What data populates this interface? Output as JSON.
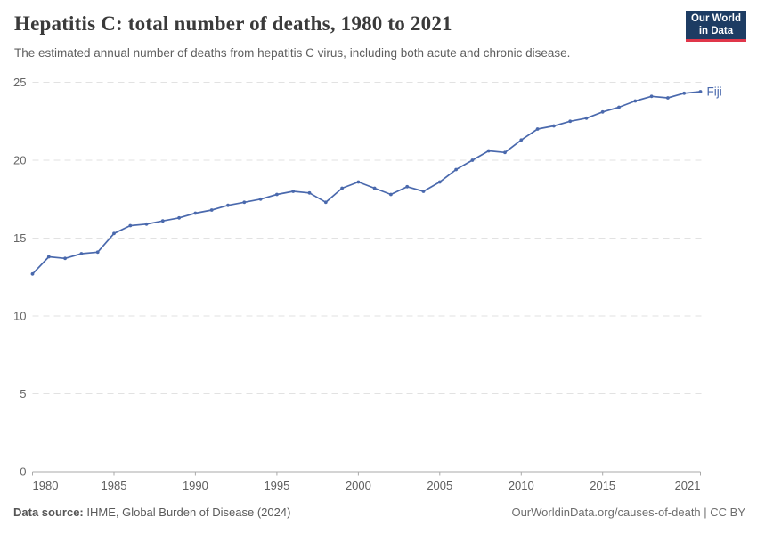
{
  "header": {
    "title": "Hepatitis C: total number of deaths, 1980 to 2021",
    "subtitle": "The estimated annual number of deaths from hepatitis C virus, including both acute and chronic disease.",
    "logo": {
      "line1": "Our World",
      "line2": "in Data"
    }
  },
  "colors": {
    "series_blue": "#4a69ad",
    "grid_gray": "#e2e2e2",
    "axis_gray": "#a9a9a9",
    "tick_label_gray": "#666666",
    "logo_navy": "#1d3c63",
    "logo_red": "#e0364a"
  },
  "chart_data": {
    "type": "line",
    "title": "Hepatitis C: total number of deaths, 1980 to 2021",
    "xlabel": "",
    "ylabel": "",
    "xlim": [
      1980,
      2021
    ],
    "ylim": [
      0,
      25
    ],
    "xticks": [
      1980,
      1985,
      1990,
      1995,
      2000,
      2005,
      2010,
      2015,
      2021
    ],
    "yticks": [
      0,
      5,
      10,
      15,
      20,
      25
    ],
    "grid": "horizontal-dashed",
    "legend_position": "end-of-line-label",
    "x": [
      1980,
      1981,
      1982,
      1983,
      1984,
      1985,
      1986,
      1987,
      1988,
      1989,
      1990,
      1991,
      1992,
      1993,
      1994,
      1995,
      1996,
      1997,
      1998,
      1999,
      2000,
      2001,
      2002,
      2003,
      2004,
      2005,
      2006,
      2007,
      2008,
      2009,
      2010,
      2011,
      2012,
      2013,
      2014,
      2015,
      2016,
      2017,
      2018,
      2019,
      2020,
      2021
    ],
    "series": [
      {
        "name": "Fiji",
        "color": "#4a69ad",
        "values": [
          12.7,
          13.8,
          13.7,
          14.0,
          14.1,
          15.3,
          15.8,
          15.9,
          16.1,
          16.3,
          16.6,
          16.8,
          17.1,
          17.3,
          17.5,
          17.8,
          18.0,
          17.9,
          17.3,
          18.2,
          18.6,
          18.2,
          17.8,
          18.3,
          18.0,
          18.6,
          19.4,
          20.0,
          20.6,
          20.5,
          21.3,
          22.0,
          22.2,
          22.5,
          22.7,
          23.1,
          23.4,
          23.8,
          24.1,
          24.0,
          24.3,
          24.4
        ]
      }
    ]
  },
  "footer": {
    "source_label": "Data source:",
    "source_text": " IHME, Global Burden of Disease (2024)",
    "credit": "OurWorldinData.org/causes-of-death | CC BY"
  }
}
